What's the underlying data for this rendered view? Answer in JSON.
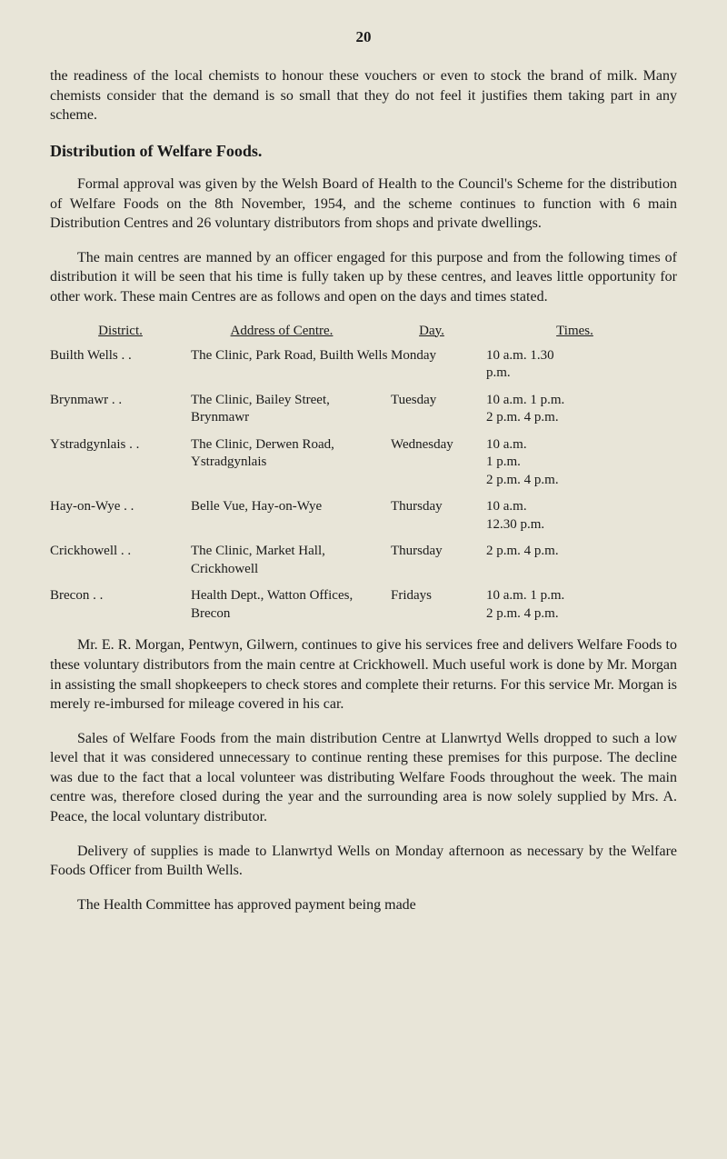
{
  "page_number": "20",
  "para1": "the readiness of the local chemists to honour these vouchers or even to stock the brand of milk. Many chemists consider that the demand is so small that they do not feel it justifies them taking part in any scheme.",
  "section_title": "Distribution of Welfare Foods.",
  "para2": "Formal approval was given by the Welsh Board of Health to the Council's Scheme for the distribution of Welfare Foods on the 8th November, 1954, and the scheme continues to function with 6 main Distribution Centres and 26 voluntary distributors from shops and private dwellings.",
  "para3": "The main centres are manned by an officer engaged for this purpose and from the following times of distribution it will be seen that his time is fully taken up by these centres, and leaves little opportunity for other work. These main Centres are as follows and open on the days and times stated.",
  "table": {
    "headers": {
      "district": "District.",
      "address": "Address of Centre.",
      "day": "Day.",
      "times": "Times."
    },
    "rows": [
      {
        "district": "Builth Wells",
        "address": "The Clinic, Park Road, Builth Wells",
        "day": "Monday",
        "times": "10 a.m. 1.30\n              p.m."
      },
      {
        "district": "Brynmawr",
        "address": "The Clinic, Bailey Street, Brynmawr",
        "day": "Tuesday",
        "times": "10 a.m. 1 p.m.\n2 p.m. 4 p.m."
      },
      {
        "district": "Ystradgynlais",
        "address": "The Clinic, Derwen Road, Ystradgynlais",
        "day": "Wednesday",
        "times": "10 a.m.\n           1 p.m.\n2 p.m. 4 p.m."
      },
      {
        "district": "Hay-on-Wye",
        "address": "Belle Vue, Hay-on-Wye",
        "day": "Thursday",
        "times": "10 a.m.\n      12.30 p.m."
      },
      {
        "district": "Crickhowell",
        "address": "The Clinic, Market Hall, Crickhowell",
        "day": "Thursday",
        "times": "2 p.m. 4 p.m."
      },
      {
        "district": "Brecon",
        "address": "Health Dept., Watton Offices, Brecon",
        "day": "Fridays",
        "times": "10 a.m. 1 p.m.\n2 p.m. 4 p.m."
      }
    ]
  },
  "para4": "Mr. E. R. Morgan, Pentwyn, Gilwern, continues to give his services free and delivers Welfare Foods to these voluntary distributors from the main centre at Crickhowell. Much useful work is done by Mr. Morgan in assisting the small shopkeepers to check stores and complete their returns. For this service Mr. Morgan is merely re-imbursed for mileage covered in his car.",
  "para5": "Sales of Welfare Foods from the main distribution Centre at Llanwrtyd Wells dropped to such a low level that it was considered unnecessary to continue renting these premises for this purpose. The decline was due to the fact that a local volunteer was distributing Welfare Foods throughout the week. The main centre was, therefore closed during the year and the surrounding area is now solely supplied by Mrs. A. Peace, the local voluntary distributor.",
  "para6": "Delivery of supplies is made to Llanwrtyd Wells on Monday afternoon as necessary by the Welfare Foods Officer from Builth Wells.",
  "para7": "The Health Committee has approved payment being made"
}
